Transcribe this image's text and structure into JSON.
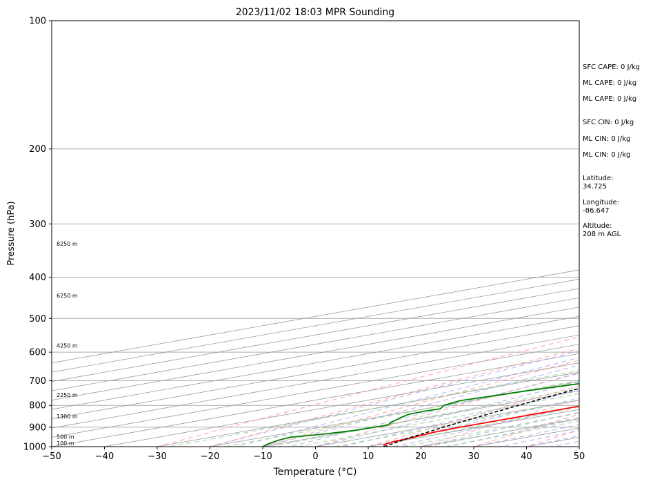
{
  "chart_data": {
    "type": "line",
    "subtype": "skew-t log-p sounding",
    "title": "2023/11/02 18:03 MPR Sounding",
    "xlabel": "Temperature (°C)",
    "ylabel": "Pressure (hPa)",
    "xlim": [
      -50,
      50
    ],
    "ylim": [
      1000,
      100
    ],
    "y_scale": "log",
    "x_ticks": [
      -50,
      -40,
      -30,
      -20,
      -10,
      0,
      10,
      20,
      30,
      40,
      50
    ],
    "y_ticks": [
      100,
      200,
      300,
      400,
      500,
      600,
      700,
      800,
      900,
      1000
    ],
    "grid": true,
    "series": [
      {
        "role": "temperature",
        "color": "#ff0000",
        "points": [
          [
            1000,
            13.0
          ],
          [
            990,
            11.0
          ],
          [
            975,
            9.5
          ],
          [
            950,
            8.5
          ],
          [
            925,
            7.0
          ],
          [
            900,
            6.5
          ],
          [
            850,
            6.5
          ],
          [
            825,
            6.5
          ],
          [
            800,
            6.5
          ],
          [
            775,
            5.0
          ],
          [
            750,
            3.5
          ],
          [
            700,
            1.0
          ],
          [
            650,
            -1.5
          ],
          [
            600,
            -4.5
          ],
          [
            550,
            -7.0
          ],
          [
            500,
            -10.5
          ],
          [
            450,
            -15.0
          ],
          [
            400,
            -20.0
          ],
          [
            350,
            -26.5
          ],
          [
            300,
            -34.0
          ],
          [
            280,
            -37.5
          ],
          [
            265,
            -40.0
          ]
        ]
      },
      {
        "role": "dewpoint",
        "color": "#008000",
        "points": [
          [
            1000,
            -10.0
          ],
          [
            985,
            -12.0
          ],
          [
            965,
            -14.0
          ],
          [
            950,
            -15.0
          ],
          [
            935,
            -12.0
          ],
          [
            915,
            -10.0
          ],
          [
            890,
            -9.5
          ],
          [
            875,
            -12.0
          ],
          [
            855,
            -15.0
          ],
          [
            840,
            -17.0
          ],
          [
            825,
            -17.5
          ],
          [
            815,
            -17.0
          ],
          [
            800,
            -20.0
          ],
          [
            780,
            -22.0
          ],
          [
            760,
            -21.0
          ],
          [
            740,
            -20.0
          ],
          [
            710,
            -17.5
          ],
          [
            690,
            -17.0
          ],
          [
            665,
            -14.5
          ],
          [
            640,
            -13.5
          ],
          [
            600,
            -19.0
          ],
          [
            570,
            -21.0
          ],
          [
            540,
            -23.5
          ],
          [
            520,
            -23.5
          ],
          [
            500,
            -25.0
          ],
          [
            480,
            -26.5
          ],
          [
            450,
            -28.0
          ],
          [
            425,
            -27.0
          ],
          [
            400,
            -29.0
          ],
          [
            380,
            -31.5
          ],
          [
            350,
            -35.5
          ],
          [
            330,
            -37.5
          ],
          [
            310,
            -45.0
          ],
          [
            300,
            -55.0
          ],
          [
            295,
            -58.0
          ],
          [
            294,
            -62.0
          ]
        ]
      },
      {
        "role": "parcel-profile",
        "color": "#000000",
        "style": "dashed",
        "points": [
          [
            1000,
            13.0
          ],
          [
            950,
            8.0
          ],
          [
            900,
            3.3
          ],
          [
            850,
            -1.2
          ],
          [
            800,
            -5.9
          ],
          [
            750,
            -10.7
          ],
          [
            700,
            -15.5
          ],
          [
            650,
            -20.3
          ],
          [
            600,
            -25.5
          ],
          [
            550,
            -31.2
          ],
          [
            500,
            -37.2
          ],
          [
            450,
            -44.0
          ],
          [
            400,
            -51.2
          ],
          [
            350,
            -59.5
          ],
          [
            300,
            -69.0
          ],
          [
            260,
            -78.0
          ]
        ]
      }
    ],
    "height_labels": [
      {
        "p": 1000,
        "label": "100 m"
      },
      {
        "p": 965,
        "label": "500 m"
      },
      {
        "p": 865,
        "label": "1300 m"
      },
      {
        "p": 770,
        "label": "2250 m"
      },
      {
        "p": 590,
        "label": "4250 m"
      },
      {
        "p": 450,
        "label": "6250 m"
      },
      {
        "p": 340,
        "label": "8250 m"
      }
    ],
    "reference_lines": {
      "dry_adiabats_color": "#ff8888",
      "moist_adiabats_color": "#9999ee",
      "mixing_ratio_color": "#88cc88",
      "isotherm_color": "#999999"
    }
  },
  "side_panel": [
    {
      "text": "SFC CAPE: 0 J/kg"
    },
    {
      "text": "ML CAPE: 0 J/kg"
    },
    {
      "text": "ML CAPE: 0 J/kg"
    },
    {
      "text": "SFC CIN: 0 J/kg"
    },
    {
      "text": "ML CIN: 0 J/kg"
    },
    {
      "text": "ML CIN: 0 J/kg"
    },
    {
      "text": "Latitude:\n34.725"
    },
    {
      "text": "Longitude:\n-86.647"
    },
    {
      "text": "Altitude:\n208 m AGL"
    }
  ]
}
